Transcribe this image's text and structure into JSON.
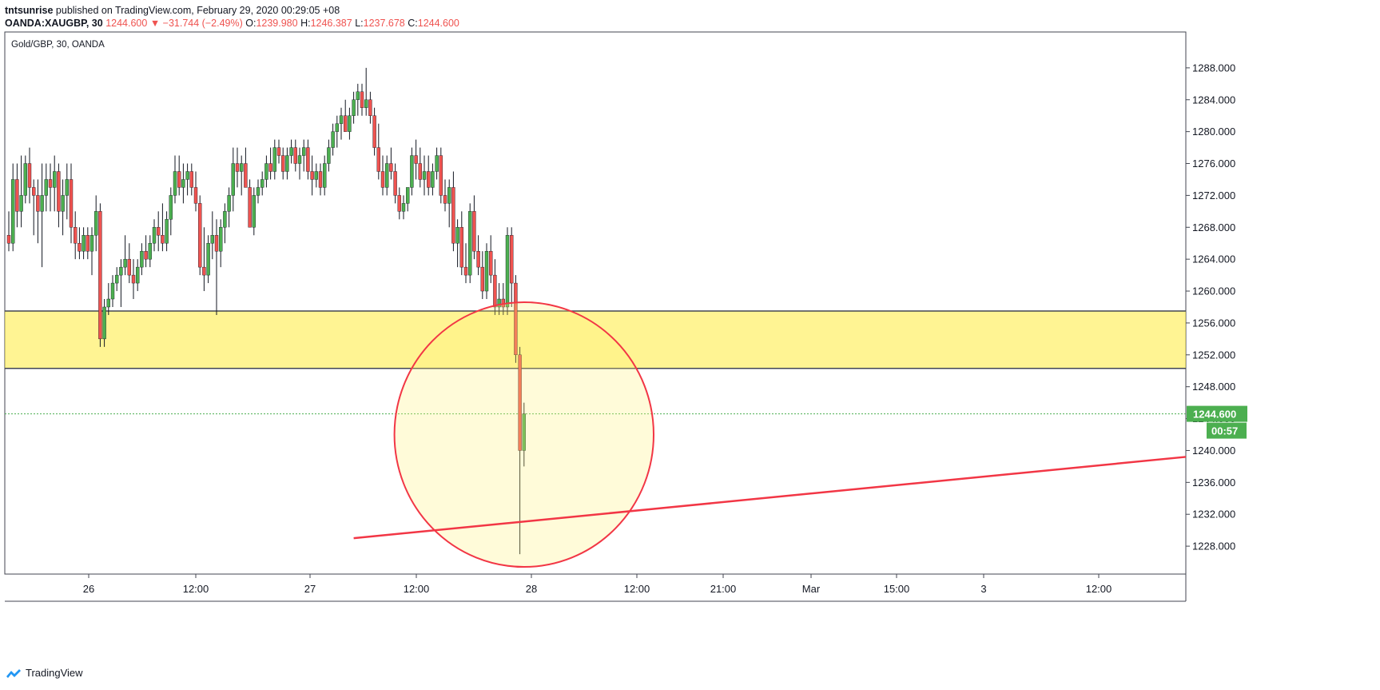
{
  "header": {
    "author": "tntsunrise",
    "published_text": "published on TradingView.com, February 29, 2020 00:29:05 +08"
  },
  "quote": {
    "symbol": "OANDA:XAUGBP, 30",
    "last": "1244.600",
    "change": "▼ −31.744 (−2.49%)",
    "o_label": "O:",
    "o_value": "1239.980",
    "h_label": "H:",
    "h_value": "1246.387",
    "l_label": "L:",
    "l_value": "1237.678",
    "c_label": "C:",
    "c_value": "1244.600"
  },
  "footer": {
    "brand": "TradingView"
  },
  "colors": {
    "up": "#4caf50",
    "down": "#ef5350",
    "zone": "#ffeb3b",
    "circle": "#f23645",
    "trendline": "#f23645",
    "price_line": "#4caf50"
  },
  "chart_data": {
    "type": "candlestick",
    "title": "Gold/GBP, 30, OANDA",
    "ylim": [
      1224.5,
      1292.5
    ],
    "y_ticks": [
      "1288.000",
      "1284.000",
      "1280.000",
      "1276.000",
      "1272.000",
      "1268.000",
      "1264.000",
      "1260.000",
      "1256.000",
      "1252.000",
      "1248.000",
      "1244.000",
      "1240.000",
      "1236.000",
      "1232.000",
      "1228.000"
    ],
    "x_ticks": [
      "26",
      "12:00",
      "27",
      "12:00",
      "28",
      "12:00",
      "21:00",
      "Mar",
      "15:00",
      "3",
      "12:00"
    ],
    "current_price": {
      "value": 1244.6,
      "label": "1244.600",
      "timer": "00:57"
    },
    "support_zone": {
      "top": 1257.5,
      "bottom": 1250.3
    },
    "trendline": {
      "from": 1229.0,
      "to": 1239.2
    },
    "circle": {
      "center_price": 1242.0,
      "radius_price": 16.6
    },
    "candles": [
      [
        1267,
        1270,
        1265,
        1266
      ],
      [
        1266,
        1276,
        1265,
        1274
      ],
      [
        1274,
        1276,
        1268,
        1270
      ],
      [
        1270,
        1277,
        1268,
        1272
      ],
      [
        1272,
        1277,
        1271,
        1276
      ],
      [
        1276,
        1278,
        1271,
        1273
      ],
      [
        1273,
        1274,
        1267,
        1272
      ],
      [
        1272,
        1274,
        1266,
        1270
      ],
      [
        1270,
        1276,
        1263,
        1272
      ],
      [
        1272,
        1276,
        1270,
        1274
      ],
      [
        1274,
        1276,
        1270,
        1273
      ],
      [
        1273,
        1277,
        1270,
        1275
      ],
      [
        1275,
        1276,
        1268,
        1270
      ],
      [
        1270,
        1274,
        1267,
        1272
      ],
      [
        1272,
        1276,
        1269,
        1274
      ],
      [
        1274,
        1276,
        1266,
        1268
      ],
      [
        1268,
        1270,
        1264,
        1266
      ],
      [
        1266,
        1268,
        1264,
        1265
      ],
      [
        1265,
        1268,
        1264,
        1267
      ],
      [
        1267,
        1268,
        1264,
        1265
      ],
      [
        1265,
        1268,
        1262,
        1267
      ],
      [
        1267,
        1272,
        1265,
        1270
      ],
      [
        1270,
        1271,
        1253,
        1254
      ],
      [
        1254,
        1259,
        1253,
        1258
      ],
      [
        1258,
        1261,
        1257,
        1259
      ],
      [
        1259,
        1262,
        1258,
        1261
      ],
      [
        1261,
        1263,
        1260,
        1262
      ],
      [
        1262,
        1264,
        1258,
        1263
      ],
      [
        1263,
        1267,
        1262,
        1264
      ],
      [
        1264,
        1266,
        1261,
        1262
      ],
      [
        1262,
        1264,
        1259,
        1261
      ],
      [
        1261,
        1264,
        1260,
        1263
      ],
      [
        1263,
        1266,
        1262,
        1265
      ],
      [
        1265,
        1267,
        1263,
        1264
      ],
      [
        1264,
        1267,
        1263,
        1266
      ],
      [
        1266,
        1269,
        1265,
        1268
      ],
      [
        1268,
        1270,
        1265,
        1267
      ],
      [
        1267,
        1271,
        1265,
        1266
      ],
      [
        1266,
        1270,
        1265,
        1269
      ],
      [
        1269,
        1273,
        1267,
        1272
      ],
      [
        1272,
        1277,
        1271,
        1275
      ],
      [
        1275,
        1277,
        1272,
        1273
      ],
      [
        1273,
        1276,
        1271,
        1274
      ],
      [
        1274,
        1276,
        1272,
        1275
      ],
      [
        1275,
        1276,
        1272,
        1273
      ],
      [
        1273,
        1275,
        1270,
        1271
      ],
      [
        1271,
        1272,
        1262,
        1263
      ],
      [
        1263,
        1268,
        1260,
        1262
      ],
      [
        1262,
        1267,
        1261,
        1266
      ],
      [
        1266,
        1270,
        1264,
        1267
      ],
      [
        1267,
        1269,
        1257,
        1265
      ],
      [
        1265,
        1269,
        1263,
        1268
      ],
      [
        1268,
        1271,
        1266,
        1270
      ],
      [
        1270,
        1273,
        1268,
        1272
      ],
      [
        1272,
        1278,
        1270,
        1276
      ],
      [
        1276,
        1278,
        1273,
        1275
      ],
      [
        1275,
        1277,
        1272,
        1276
      ],
      [
        1276,
        1278,
        1273,
        1273
      ],
      [
        1273,
        1274,
        1268,
        1268
      ],
      [
        1268,
        1273,
        1267,
        1272
      ],
      [
        1272,
        1274,
        1271,
        1273
      ],
      [
        1273,
        1275,
        1272,
        1274
      ],
      [
        1274,
        1277,
        1273,
        1276
      ],
      [
        1276,
        1278,
        1274,
        1275
      ],
      [
        1275,
        1279,
        1274,
        1278
      ],
      [
        1278,
        1279,
        1276,
        1277
      ],
      [
        1277,
        1278,
        1274,
        1275
      ],
      [
        1275,
        1278,
        1274,
        1277
      ],
      [
        1277,
        1279,
        1276,
        1278
      ],
      [
        1278,
        1279,
        1275,
        1276
      ],
      [
        1276,
        1278,
        1274,
        1277
      ],
      [
        1277,
        1279,
        1275,
        1278
      ],
      [
        1278,
        1279,
        1274,
        1275
      ],
      [
        1275,
        1277,
        1272,
        1274
      ],
      [
        1274,
        1276,
        1273,
        1275
      ],
      [
        1275,
        1276,
        1272,
        1273
      ],
      [
        1273,
        1277,
        1272,
        1276
      ],
      [
        1276,
        1279,
        1275,
        1278
      ],
      [
        1278,
        1281,
        1277,
        1280
      ],
      [
        1280,
        1282,
        1278,
        1281
      ],
      [
        1281,
        1283,
        1279,
        1282
      ],
      [
        1282,
        1284,
        1280,
        1280
      ],
      [
        1280,
        1283,
        1279,
        1282
      ],
      [
        1282,
        1285,
        1281,
        1284
      ],
      [
        1284,
        1286,
        1282,
        1285
      ],
      [
        1285,
        1286,
        1282,
        1283
      ],
      [
        1283,
        1288,
        1282,
        1284
      ],
      [
        1284,
        1285,
        1281,
        1282
      ],
      [
        1282,
        1283,
        1277,
        1278
      ],
      [
        1278,
        1281,
        1274,
        1275
      ]
    ],
    "candles_tail": [
      [
        1275,
        1277,
        1272,
        1273
      ],
      [
        1273,
        1277,
        1272,
        1276
      ],
      [
        1276,
        1278,
        1274,
        1275
      ],
      [
        1275,
        1276,
        1271,
        1272
      ],
      [
        1272,
        1273,
        1269,
        1270
      ],
      [
        1270,
        1272,
        1269,
        1271
      ],
      [
        1271,
        1273,
        1270,
        1273
      ],
      [
        1273,
        1278,
        1272,
        1277
      ],
      [
        1277,
        1279,
        1274,
        1276
      ],
      [
        1276,
        1278,
        1273,
        1274
      ],
      [
        1274,
        1277,
        1272,
        1275
      ],
      [
        1275,
        1277,
        1272,
        1273
      ],
      [
        1273,
        1276,
        1272,
        1275
      ],
      [
        1275,
        1278,
        1274,
        1277
      ],
      [
        1277,
        1278,
        1271,
        1272
      ],
      [
        1272,
        1274,
        1270,
        1271
      ],
      [
        1271,
        1274,
        1268,
        1273
      ],
      [
        1273,
        1275,
        1265,
        1266
      ],
      [
        1266,
        1269,
        1263,
        1268
      ],
      [
        1268,
        1270,
        1262,
        1263
      ],
      [
        1263,
        1266,
        1261,
        1262
      ],
      [
        1262,
        1271,
        1261,
        1270
      ],
      [
        1270,
        1272,
        1264,
        1265
      ],
      [
        1265,
        1267,
        1262,
        1263
      ],
      [
        1263,
        1265,
        1259,
        1260
      ],
      [
        1260,
        1266,
        1259,
        1265
      ],
      [
        1265,
        1267,
        1261,
        1262
      ],
      [
        1262,
        1264,
        1257,
        1258
      ],
      [
        1258,
        1261,
        1257,
        1259
      ],
      [
        1259,
        1261,
        1257,
        1258
      ],
      [
        1258,
        1268,
        1257,
        1267
      ],
      [
        1267,
        1268,
        1258,
        1261
      ],
      [
        1261,
        1262,
        1251,
        1252
      ],
      [
        1252,
        1253,
        1227,
        1240
      ],
      [
        1240,
        1246,
        1238,
        1244.6
      ]
    ]
  }
}
